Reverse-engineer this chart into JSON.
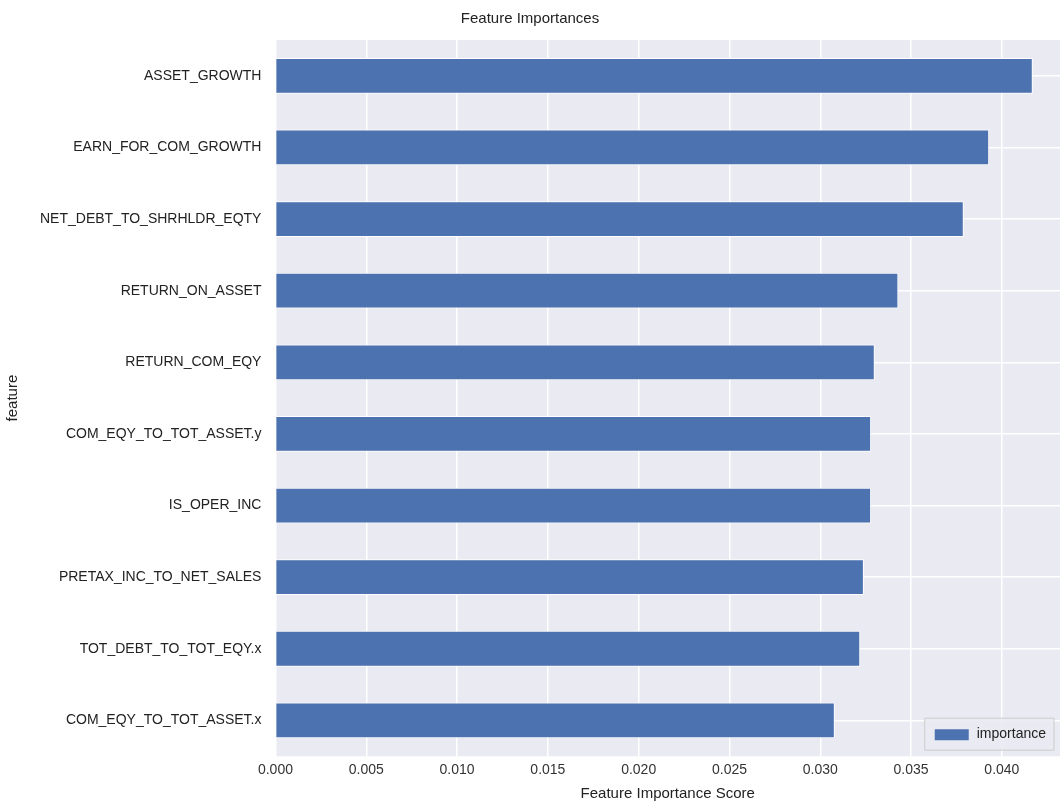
{
  "chart_data": {
    "type": "bar",
    "orientation": "horizontal",
    "title": "Feature Importances",
    "xlabel": "Feature Importance Score",
    "ylabel": "feature",
    "categories": [
      "ASSET_GROWTH",
      "EARN_FOR_COM_GROWTH",
      "NET_DEBT_TO_SHRHLDR_EQTY",
      "RETURN_ON_ASSET",
      "RETURN_COM_EQY",
      "COM_EQY_TO_TOT_ASSET.y",
      "IS_OPER_INC",
      "PRETAX_INC_TO_NET_SALES",
      "TOT_DEBT_TO_TOT_EQY.x",
      "COM_EQY_TO_TOT_ASSET.x"
    ],
    "series": [
      {
        "name": "importance",
        "color": "#4c72b0",
        "values": [
          0.0417,
          0.0393,
          0.0379,
          0.0343,
          0.033,
          0.0328,
          0.0328,
          0.0324,
          0.0322,
          0.0308
        ]
      }
    ],
    "xlim": [
      0,
      0.0432
    ],
    "xticks": [
      {
        "value": 0,
        "label": "0.000"
      },
      {
        "value": 0.005,
        "label": "0.005"
      },
      {
        "value": 0.01,
        "label": "0.010"
      },
      {
        "value": 0.015,
        "label": "0.015"
      },
      {
        "value": 0.02,
        "label": "0.020"
      },
      {
        "value": 0.025,
        "label": "0.025"
      },
      {
        "value": 0.03,
        "label": "0.030"
      },
      {
        "value": 0.035,
        "label": "0.035"
      },
      {
        "value": 0.04,
        "label": "0.040"
      }
    ],
    "grid": true,
    "legend": "bottom right"
  }
}
